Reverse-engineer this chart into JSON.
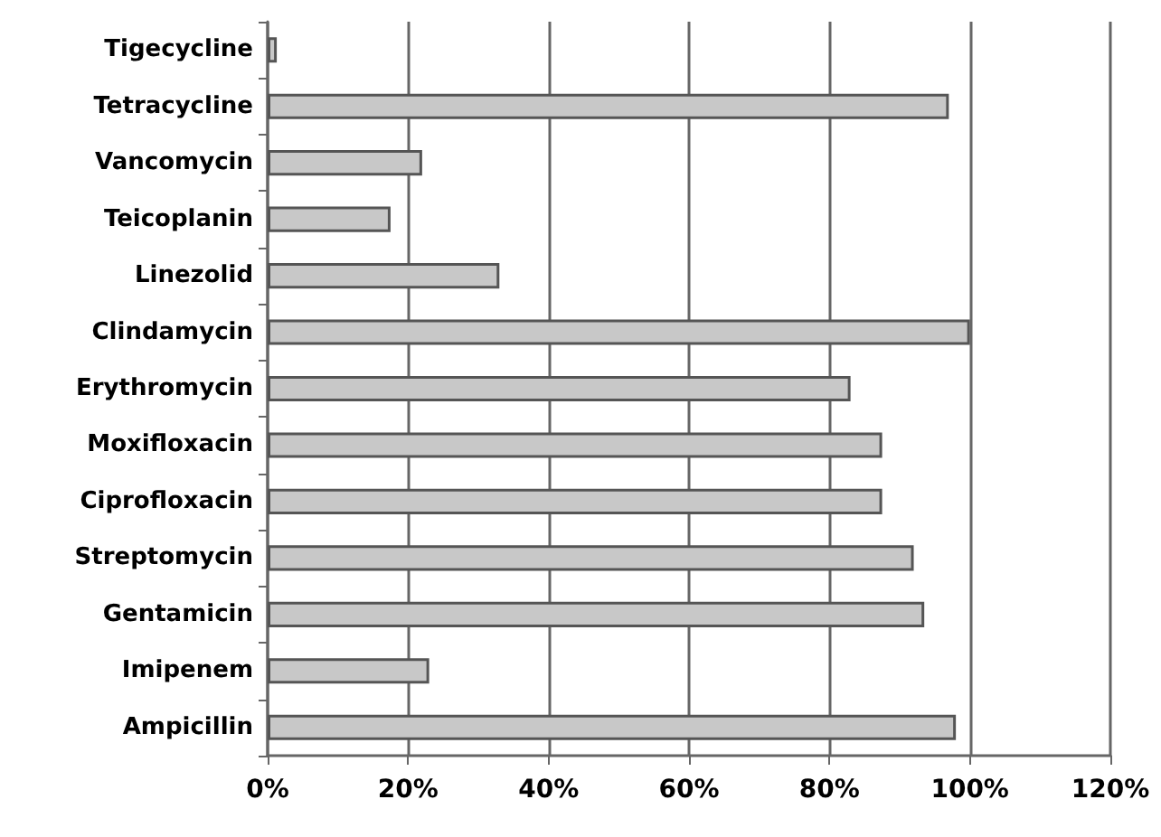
{
  "chart_data": {
    "type": "bar",
    "orientation": "horizontal",
    "categories": [
      "Tigecycline",
      "Tetracycline",
      "Vancomycin",
      "Teicoplanin",
      "Linezolid",
      "Clindamycin",
      "Erythromycin",
      "Moxifloxacin",
      "Ciprofloxacin",
      "Streptomycin",
      "Gentamicin",
      "Imipenem",
      "Ampicillin"
    ],
    "values": [
      1.3,
      97,
      22,
      17.5,
      33,
      100,
      83,
      87.5,
      87.5,
      92,
      93.5,
      23,
      98
    ],
    "color": "#c8c8c8",
    "xlim": [
      0,
      120
    ],
    "xticks": [
      {
        "value": 0,
        "label": "0%"
      },
      {
        "value": 20,
        "label": "20%"
      },
      {
        "value": 40,
        "label": "40%"
      },
      {
        "value": 60,
        "label": "60%"
      },
      {
        "value": 80,
        "label": "80%"
      },
      {
        "value": 100,
        "label": "100%"
      },
      {
        "value": 120,
        "label": "120%"
      }
    ],
    "grid": "x"
  }
}
